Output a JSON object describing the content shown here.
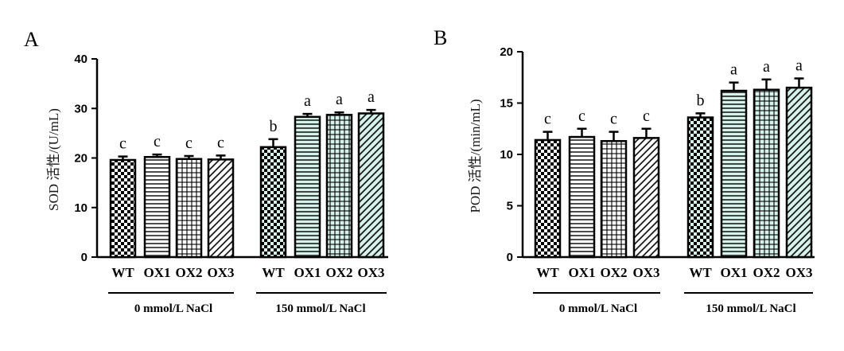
{
  "chart_data": [
    {
      "type": "bar",
      "panel_label": "A",
      "ylabel": "SOD 活性/(U/mL)",
      "ylim": [
        0,
        40
      ],
      "yticks": [
        "0",
        "10",
        "20",
        "30",
        "40"
      ],
      "groups": [
        {
          "label": "0 mmol/L NaCl",
          "categories": [
            "WT",
            "OX1",
            "OX2",
            "OX3"
          ],
          "values": [
            19.6,
            20.2,
            19.8,
            19.7
          ],
          "errors": [
            0.7,
            0.5,
            0.6,
            0.8
          ],
          "letters": [
            "c",
            "c",
            "c",
            "c"
          ]
        },
        {
          "label": "150 mmol/L  NaCl",
          "categories": [
            "WT",
            "OX1",
            "OX2",
            "OX3"
          ],
          "values": [
            22.2,
            28.3,
            28.7,
            29.0
          ],
          "errors": [
            1.6,
            0.6,
            0.5,
            0.7
          ],
          "letters": [
            "b",
            "a",
            "a",
            "a"
          ]
        }
      ],
      "patterns": [
        "checker",
        "horizontal",
        "grid",
        "diagonal"
      ],
      "colors": {
        "low_salt_fill": "#ffffff",
        "high_salt_fill": "#d6f2ea",
        "ink": "#000000"
      }
    },
    {
      "type": "bar",
      "panel_label": "B",
      "ylabel": "POD 活性/(min/mL)",
      "ylim": [
        0,
        20
      ],
      "yticks": [
        "0",
        "5",
        "10",
        "15",
        "20"
      ],
      "groups": [
        {
          "label": "0 mmol/L NaCl",
          "categories": [
            "WT",
            "OX1",
            "OX2",
            "OX3"
          ],
          "values": [
            11.4,
            11.7,
            11.3,
            11.6
          ],
          "errors": [
            0.8,
            0.8,
            0.9,
            0.9
          ],
          "letters": [
            "c",
            "c",
            "c",
            "c"
          ]
        },
        {
          "label": "150 mmol/L NaCl",
          "categories": [
            "WT",
            "OX1",
            "OX2",
            "OX3"
          ],
          "values": [
            13.6,
            16.2,
            16.3,
            16.5
          ],
          "errors": [
            0.4,
            0.8,
            1.0,
            0.9
          ],
          "letters": [
            "b",
            "a",
            "a",
            "a"
          ]
        }
      ],
      "patterns": [
        "checker",
        "horizontal",
        "grid",
        "diagonal"
      ],
      "colors": {
        "low_salt_fill": "#ffffff",
        "high_salt_fill": "#d6f2ea",
        "ink": "#000000"
      }
    }
  ]
}
